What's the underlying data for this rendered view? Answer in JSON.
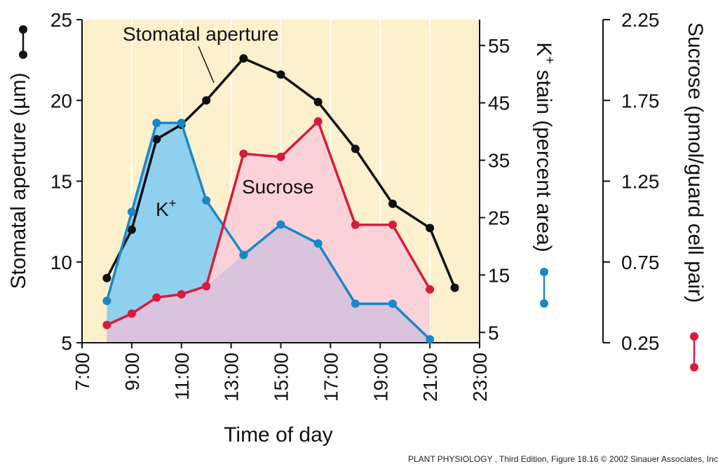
{
  "chart_data": {
    "type": "line",
    "xlabel": "Time of day",
    "x_ticks": [
      "7:00",
      "9:00",
      "11:00",
      "13:00",
      "15:00",
      "17:00",
      "19:00",
      "21:00",
      "23:00"
    ],
    "xlim": [
      7,
      23
    ],
    "axes": {
      "left": {
        "label": "Stomatal aperture (µm)",
        "ticks": [
          "5",
          "10",
          "15",
          "20",
          "25"
        ],
        "ylim": [
          5,
          25
        ]
      },
      "right1": {
        "label_parts": [
          "K",
          "+",
          " stain (percent area)"
        ],
        "ticks": [
          "5",
          "15",
          "25",
          "35",
          "45",
          "55"
        ],
        "ylim": [
          3.2,
          59.5
        ]
      },
      "right2": {
        "label": "Sucrose (pmol/guard cell pair)",
        "ticks": [
          "0.25",
          "0.75",
          "1.25",
          "1.75",
          "2.25"
        ],
        "ylim": [
          0.25,
          2.25
        ]
      }
    },
    "series": [
      {
        "name": "Stomatal aperture",
        "axis": "left",
        "color": "#111111",
        "x": [
          8,
          9,
          10,
          11,
          12,
          13.5,
          15,
          16.5,
          18,
          19.5,
          21,
          22
        ],
        "y": [
          9.0,
          12.0,
          17.6,
          18.5,
          20.0,
          22.6,
          21.6,
          19.9,
          17.0,
          13.6,
          12.1,
          8.4
        ]
      },
      {
        "name": "K+",
        "axis": "right1",
        "color": "#1a87c9",
        "x": [
          8,
          9,
          10,
          11,
          12,
          13.5,
          15,
          16.5,
          18,
          19.5,
          21
        ],
        "y": [
          10.5,
          26.0,
          41.5,
          41.5,
          28.0,
          18.5,
          23.8,
          20.5,
          10.0,
          10.0,
          3.8
        ]
      },
      {
        "name": "Sucrose",
        "axis": "right2",
        "color": "#d91a3c",
        "x": [
          8,
          9,
          10,
          11,
          12,
          13.5,
          15,
          16.5,
          18,
          19.5,
          21
        ],
        "y": [
          0.36,
          0.43,
          0.53,
          0.55,
          0.6,
          1.42,
          1.4,
          1.62,
          0.98,
          0.98,
          0.58
        ]
      }
    ],
    "annotations": {
      "aperture": "Stomatal aperture",
      "k_base": "K",
      "k_sup": "+",
      "sucrose": "Sucrose"
    },
    "colors": {
      "background": "#fdf0cc",
      "k_fill": "#8fd0ee",
      "sucrose_fill": "#fbd2d8",
      "overlap_fill": "#d9c3dd"
    }
  },
  "credit": "PLANT PHYSIOLOGY , Third Edition, Figure 18.16  © 2002 Sinauer Associates, Inc."
}
